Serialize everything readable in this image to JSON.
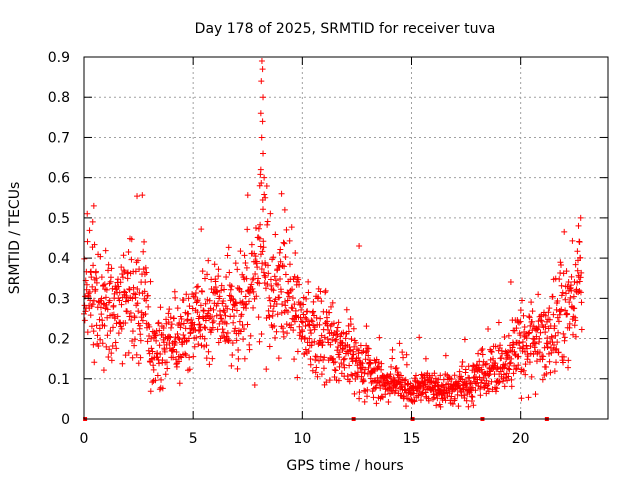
{
  "chart_data": {
    "type": "scatter",
    "title": "Day 178 of 2025, SRMTID for receiver tuva",
    "xlabel": "GPS time / hours",
    "ylabel": "SRMTID / TECUs",
    "xlim": [
      0,
      24
    ],
    "ylim": [
      0,
      0.9
    ],
    "xticks": [
      0,
      5,
      10,
      15,
      20
    ],
    "xtick_labels": [
      "0",
      "5",
      "10",
      "15",
      "20"
    ],
    "yticks": [
      0,
      0.1,
      0.2,
      0.3,
      0.4,
      0.5,
      0.6,
      0.7,
      0.8,
      0.9
    ],
    "ytick_labels": [
      "0",
      "0.1",
      "0.2",
      "0.3",
      "0.4",
      "0.5",
      "0.6",
      "0.7",
      "0.8",
      "0.9"
    ],
    "grid": true,
    "marker": "plus",
    "color": "#ff0000",
    "zero_markers_x": [
      0.05,
      12.35,
      15.05,
      18.25,
      21.2
    ],
    "series": [
      {
        "name": "SRMTID",
        "profile_x": [
          0,
          0.3,
          0.6,
          1,
          1.5,
          2,
          2.5,
          2.8,
          3,
          3.5,
          4,
          4.5,
          5,
          5.5,
          6,
          6.5,
          7,
          7.5,
          8,
          8.2,
          8.5,
          9,
          9.5,
          10,
          10.5,
          11,
          11.5,
          12,
          12.5,
          13,
          13.5,
          14,
          14.5,
          15,
          15.5,
          16,
          16.5,
          17,
          17.5,
          18,
          18.5,
          19,
          19.5,
          20,
          20.5,
          21,
          21.5,
          22,
          22.5,
          22.8
        ],
        "profile_y": [
          0.3,
          0.32,
          0.28,
          0.27,
          0.3,
          0.31,
          0.3,
          0.32,
          0.18,
          0.17,
          0.2,
          0.19,
          0.24,
          0.26,
          0.27,
          0.25,
          0.27,
          0.3,
          0.35,
          0.42,
          0.32,
          0.33,
          0.3,
          0.25,
          0.22,
          0.2,
          0.2,
          0.18,
          0.15,
          0.12,
          0.1,
          0.09,
          0.08,
          0.07,
          0.08,
          0.08,
          0.07,
          0.08,
          0.08,
          0.1,
          0.11,
          0.13,
          0.15,
          0.19,
          0.2,
          0.18,
          0.22,
          0.26,
          0.3,
          0.35
        ],
        "profile_spread": [
          0.05,
          0.07,
          0.07,
          0.07,
          0.07,
          0.07,
          0.08,
          0.07,
          0.04,
          0.05,
          0.05,
          0.05,
          0.06,
          0.07,
          0.07,
          0.07,
          0.07,
          0.08,
          0.09,
          0.13,
          0.09,
          0.08,
          0.07,
          0.06,
          0.06,
          0.06,
          0.05,
          0.05,
          0.04,
          0.03,
          0.03,
          0.02,
          0.02,
          0.02,
          0.02,
          0.02,
          0.02,
          0.02,
          0.02,
          0.03,
          0.03,
          0.03,
          0.04,
          0.05,
          0.05,
          0.05,
          0.06,
          0.07,
          0.07,
          0.07
        ],
        "sample_count": 1700,
        "peak_points": [
          [
            8.15,
            0.89
          ],
          [
            8.18,
            0.87
          ],
          [
            8.12,
            0.84
          ],
          [
            8.2,
            0.8
          ],
          [
            8.1,
            0.76
          ],
          [
            8.18,
            0.74
          ],
          [
            8.14,
            0.7
          ],
          [
            8.2,
            0.66
          ],
          [
            8.1,
            0.62
          ],
          [
            8.25,
            0.6
          ],
          [
            8.05,
            0.58
          ],
          [
            8.3,
            0.55
          ],
          [
            0.45,
            0.53
          ],
          [
            0.4,
            0.49
          ],
          [
            9.05,
            0.56
          ],
          [
            9.2,
            0.52
          ],
          [
            12.6,
            0.43
          ],
          [
            22.75,
            0.5
          ],
          [
            22.65,
            0.48
          ],
          [
            22.7,
            0.44
          ]
        ]
      }
    ]
  }
}
